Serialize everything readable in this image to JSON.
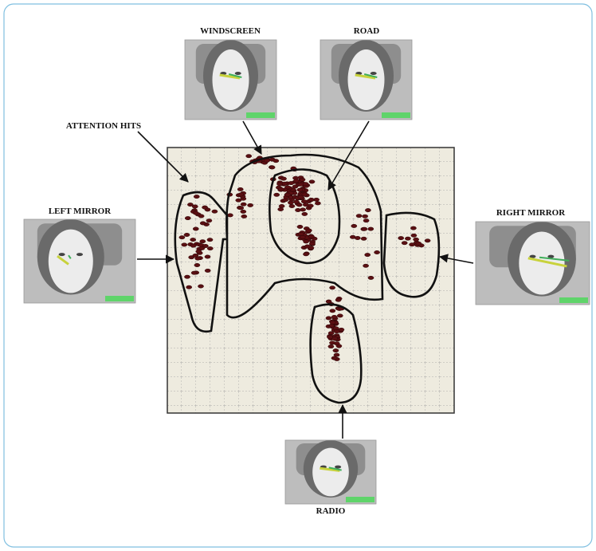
{
  "annotation": "ATTENTION HITS",
  "views": [
    {
      "label": "WINDSCREEN"
    },
    {
      "label": "ROAD"
    },
    {
      "label": "LEFT MIRROR"
    },
    {
      "label": "RIGHT MIRROR"
    },
    {
      "label": "RADIO"
    }
  ]
}
